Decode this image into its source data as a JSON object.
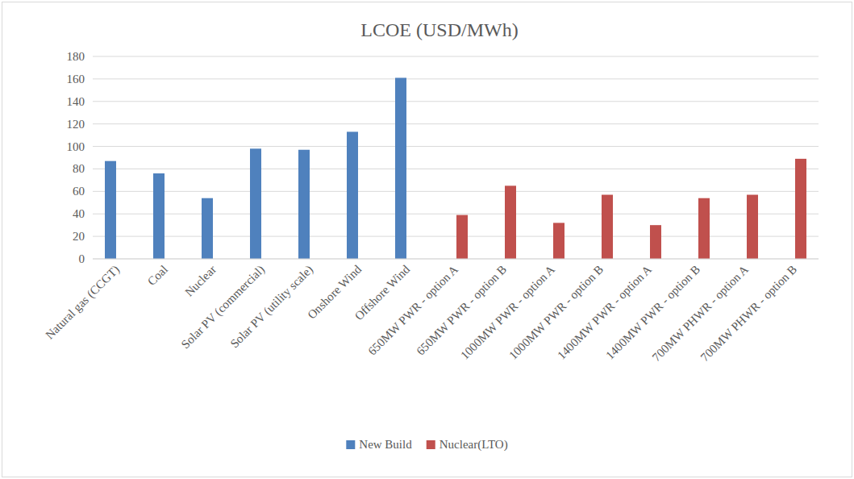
{
  "chart_data": {
    "type": "bar",
    "title": "LCOE (USD/MWh)",
    "categories": [
      "Natural gas (CCGT)",
      "Coal",
      "Nuclear",
      "Solar PV (commercial)",
      "Solar PV (utility scale)",
      "Onshore Wind",
      "Offshore Wind",
      "650MW PWR - option A",
      "650MW PWR - option B",
      "1000MW PWR - option A",
      "1000MW PWR - option B",
      "1400MW PWR - option A",
      "1400MW PWR - option B",
      "700MW PHWR - option A",
      "700MW PHWR - option B"
    ],
    "series": [
      {
        "name": "New Build",
        "color": "#4f81bd",
        "values": [
          87,
          76,
          54,
          98,
          97,
          113,
          161,
          null,
          null,
          null,
          null,
          null,
          null,
          null,
          null
        ]
      },
      {
        "name": "Nuclear(LTO)",
        "color": "#c0504d",
        "values": [
          null,
          null,
          null,
          null,
          null,
          null,
          null,
          39,
          65,
          32,
          57,
          30,
          54,
          57,
          89
        ]
      }
    ],
    "ylim": [
      0,
      180
    ],
    "yticks": [
      0,
      20,
      40,
      60,
      80,
      100,
      120,
      140,
      160,
      180
    ],
    "grid": true,
    "legend": "bottom"
  }
}
